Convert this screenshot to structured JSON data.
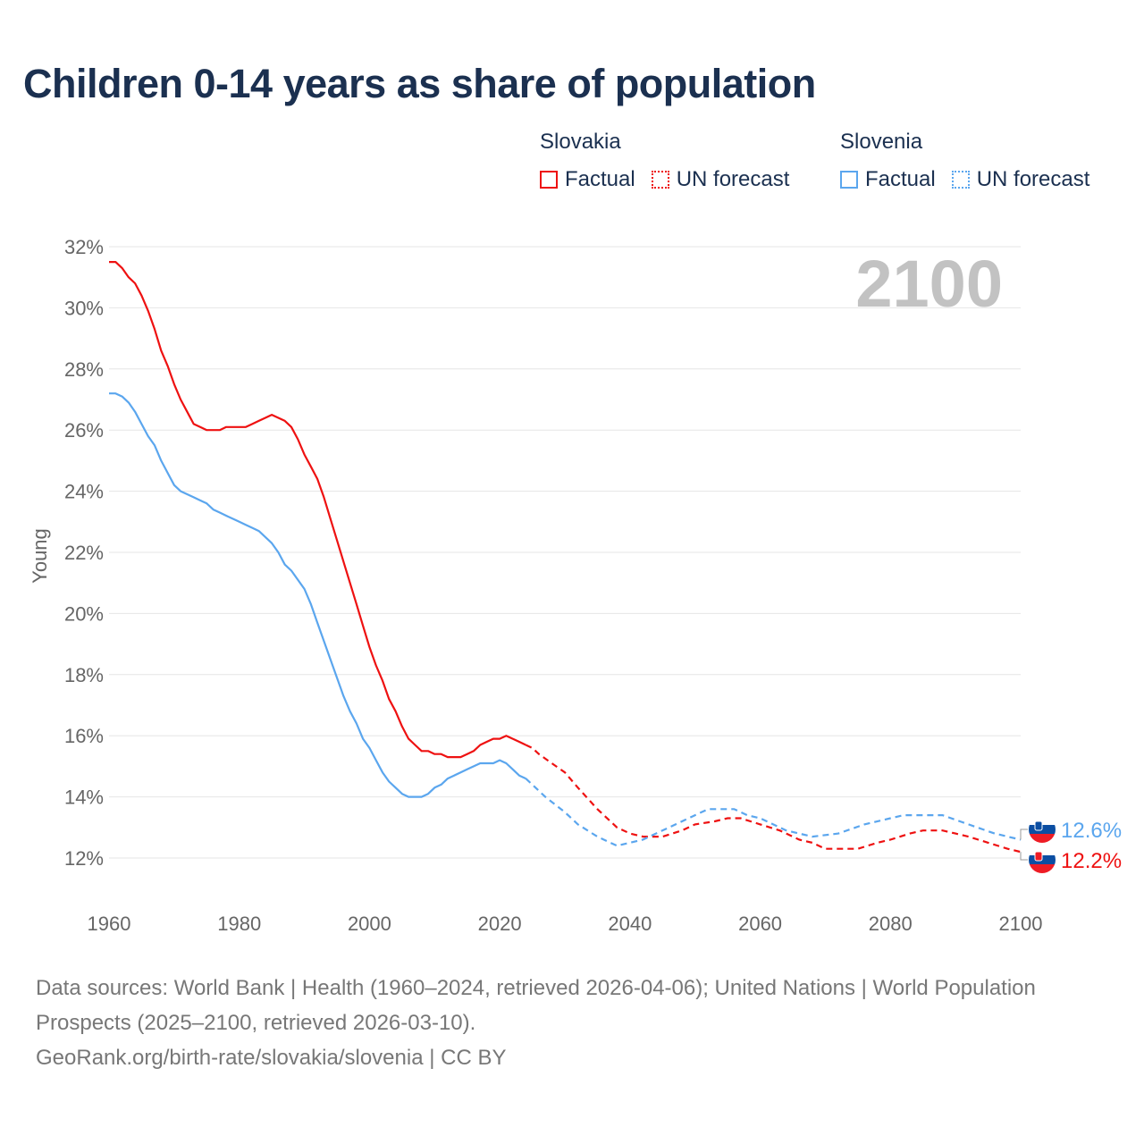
{
  "chart_data": {
    "type": "line",
    "title": "Children 0-14 years as share of population",
    "ylabel": "Young",
    "xlabel": "",
    "xlim": [
      1960,
      2100
    ],
    "ylim": [
      11,
      32
    ],
    "x_ticks": [
      1960,
      1980,
      2000,
      2020,
      2040,
      2060,
      2080,
      2100
    ],
    "y_ticks": [
      12,
      14,
      16,
      18,
      20,
      22,
      24,
      26,
      28,
      30,
      32
    ],
    "y_tick_labels": [
      "12%",
      "14%",
      "16%",
      "18%",
      "20%",
      "22%",
      "24%",
      "26%",
      "28%",
      "30%",
      "32%"
    ],
    "grid": true,
    "year_watermark": "2100",
    "series": [
      {
        "name": "Slovakia",
        "color": "#ee1111",
        "factual_label": "Factual",
        "forecast_label": "UN forecast",
        "end_label": "12.2%",
        "end_value": 12.2,
        "factual": {
          "x": [
            1960,
            1961,
            1962,
            1963,
            1964,
            1965,
            1966,
            1967,
            1968,
            1969,
            1970,
            1971,
            1972,
            1973,
            1974,
            1975,
            1976,
            1977,
            1978,
            1979,
            1980,
            1981,
            1982,
            1983,
            1984,
            1985,
            1986,
            1987,
            1988,
            1989,
            1990,
            1991,
            1992,
            1993,
            1994,
            1995,
            1996,
            1997,
            1998,
            1999,
            2000,
            2001,
            2002,
            2003,
            2004,
            2005,
            2006,
            2007,
            2008,
            2009,
            2010,
            2011,
            2012,
            2013,
            2014,
            2015,
            2016,
            2017,
            2018,
            2019,
            2020,
            2021,
            2022,
            2023,
            2024
          ],
          "y": [
            31.5,
            31.5,
            31.3,
            31.0,
            30.8,
            30.4,
            29.9,
            29.3,
            28.6,
            28.1,
            27.5,
            27.0,
            26.6,
            26.2,
            26.1,
            26.0,
            26.0,
            26.0,
            26.1,
            26.1,
            26.1,
            26.1,
            26.2,
            26.3,
            26.4,
            26.5,
            26.4,
            26.3,
            26.1,
            25.7,
            25.2,
            24.8,
            24.4,
            23.8,
            23.1,
            22.4,
            21.7,
            21.0,
            20.3,
            19.6,
            18.9,
            18.3,
            17.8,
            17.2,
            16.8,
            16.3,
            15.9,
            15.7,
            15.5,
            15.5,
            15.4,
            15.4,
            15.3,
            15.3,
            15.3,
            15.4,
            15.5,
            15.7,
            15.8,
            15.9,
            15.9,
            16.0,
            15.9,
            15.8,
            15.7
          ]
        },
        "forecast": {
          "x": [
            2024,
            2025,
            2026,
            2028,
            2030,
            2032,
            2035,
            2038,
            2040,
            2042,
            2045,
            2048,
            2050,
            2053,
            2055,
            2057,
            2060,
            2063,
            2066,
            2068,
            2070,
            2075,
            2078,
            2080,
            2083,
            2085,
            2088,
            2090,
            2092,
            2095,
            2098,
            2100
          ],
          "y": [
            15.7,
            15.6,
            15.4,
            15.1,
            14.8,
            14.3,
            13.6,
            13.0,
            12.8,
            12.7,
            12.7,
            12.9,
            13.1,
            13.2,
            13.3,
            13.3,
            13.1,
            12.9,
            12.6,
            12.5,
            12.3,
            12.3,
            12.5,
            12.6,
            12.8,
            12.9,
            12.9,
            12.8,
            12.7,
            12.5,
            12.3,
            12.2
          ]
        }
      },
      {
        "name": "Slovenia",
        "color": "#5ba6ee",
        "factual_label": "Factual",
        "forecast_label": "UN forecast",
        "end_label": "12.6%",
        "end_value": 12.6,
        "factual": {
          "x": [
            1960,
            1961,
            1962,
            1963,
            1964,
            1965,
            1966,
            1967,
            1968,
            1969,
            1970,
            1971,
            1972,
            1973,
            1974,
            1975,
            1976,
            1977,
            1978,
            1979,
            1980,
            1981,
            1982,
            1983,
            1984,
            1985,
            1986,
            1987,
            1988,
            1989,
            1990,
            1991,
            1992,
            1993,
            1994,
            1995,
            1996,
            1997,
            1998,
            1999,
            2000,
            2001,
            2002,
            2003,
            2004,
            2005,
            2006,
            2007,
            2008,
            2009,
            2010,
            2011,
            2012,
            2013,
            2014,
            2015,
            2016,
            2017,
            2018,
            2019,
            2020,
            2021,
            2022,
            2023,
            2024
          ],
          "y": [
            27.2,
            27.2,
            27.1,
            26.9,
            26.6,
            26.2,
            25.8,
            25.5,
            25.0,
            24.6,
            24.2,
            24.0,
            23.9,
            23.8,
            23.7,
            23.6,
            23.4,
            23.3,
            23.2,
            23.1,
            23.0,
            22.9,
            22.8,
            22.7,
            22.5,
            22.3,
            22.0,
            21.6,
            21.4,
            21.1,
            20.8,
            20.3,
            19.7,
            19.1,
            18.5,
            17.9,
            17.3,
            16.8,
            16.4,
            15.9,
            15.6,
            15.2,
            14.8,
            14.5,
            14.3,
            14.1,
            14.0,
            14.0,
            14.0,
            14.1,
            14.3,
            14.4,
            14.6,
            14.7,
            14.8,
            14.9,
            15.0,
            15.1,
            15.1,
            15.1,
            15.2,
            15.1,
            14.9,
            14.7,
            14.6
          ]
        },
        "forecast": {
          "x": [
            2024,
            2025,
            2027,
            2030,
            2032,
            2035,
            2038,
            2040,
            2042,
            2044,
            2046,
            2050,
            2052,
            2056,
            2058,
            2060,
            2064,
            2068,
            2072,
            2076,
            2080,
            2082,
            2088,
            2092,
            2096,
            2100
          ],
          "y": [
            14.6,
            14.4,
            14.0,
            13.5,
            13.1,
            12.7,
            12.4,
            12.5,
            12.6,
            12.8,
            13.0,
            13.4,
            13.6,
            13.6,
            13.4,
            13.3,
            12.9,
            12.7,
            12.8,
            13.1,
            13.3,
            13.4,
            13.4,
            13.1,
            12.8,
            12.6
          ]
        }
      }
    ]
  },
  "footer": {
    "sources": "Data sources: World Bank | Health (1960–2024, retrieved 2026-04-06); United Nations | World Population Prospects (2025–2100, retrieved 2026-03-10).",
    "link": "GeoRank.org/birth-rate/slovakia/slovenia | CC BY"
  }
}
